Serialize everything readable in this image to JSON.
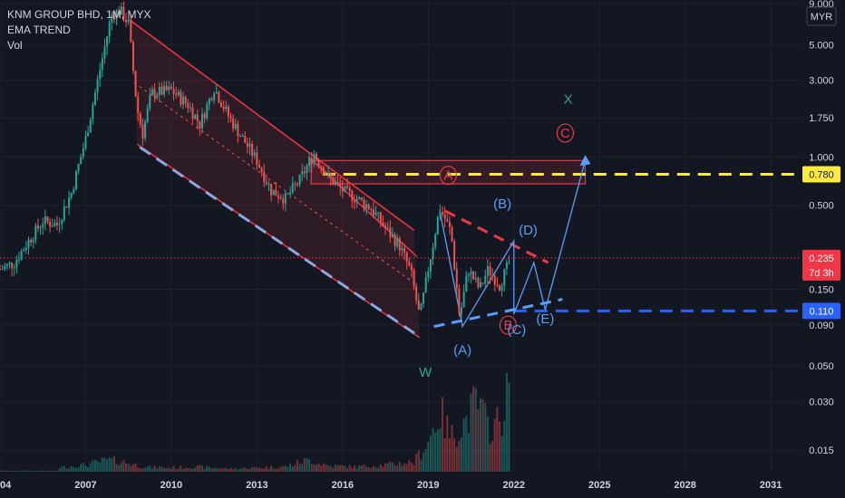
{
  "chart_data": {
    "type": "candlestick",
    "title": "KNM GROUP BHD, 1M, MYX",
    "indicators": [
      "EMA TREND",
      "Vol"
    ],
    "currency": "MYR",
    "scale": "log",
    "ylim": [
      0.013,
      9.0
    ],
    "xlim": [
      2004,
      2033.6
    ],
    "y_ticks": [
      "9.000",
      "5.000",
      "3.000",
      "1.750",
      "1.000",
      "0.500",
      "0.235",
      "0.150",
      "0.090",
      "0.050",
      "0.030",
      "0.015"
    ],
    "x_ticks": [
      "04",
      "2007",
      "2010",
      "2013",
      "2016",
      "2019",
      "2022",
      "2025",
      "2028",
      "2031"
    ],
    "price_path": [
      [
        2004.0,
        0.2
      ],
      [
        2004.5,
        0.22
      ],
      [
        2005.0,
        0.3
      ],
      [
        2005.5,
        0.4
      ],
      [
        2006.0,
        0.38
      ],
      [
        2006.5,
        0.6
      ],
      [
        2007.0,
        1.3
      ],
      [
        2007.5,
        3.5
      ],
      [
        2007.9,
        7.6
      ],
      [
        2008.2,
        8.2
      ],
      [
        2008.5,
        6.8
      ],
      [
        2008.8,
        2.0
      ],
      [
        2009.0,
        1.4
      ],
      [
        2009.3,
        2.5
      ],
      [
        2010.0,
        2.6
      ],
      [
        2010.6,
        2.1
      ],
      [
        2011.0,
        1.6
      ],
      [
        2011.5,
        2.7
      ],
      [
        2012.0,
        1.8
      ],
      [
        2012.5,
        1.3
      ],
      [
        2013.0,
        0.95
      ],
      [
        2013.5,
        0.62
      ],
      [
        2014.0,
        0.55
      ],
      [
        2014.5,
        0.72
      ],
      [
        2015.0,
        1.05
      ],
      [
        2015.5,
        0.75
      ],
      [
        2016.0,
        0.62
      ],
      [
        2016.5,
        0.55
      ],
      [
        2017.0,
        0.48
      ],
      [
        2017.5,
        0.36
      ],
      [
        2018.0,
        0.28
      ],
      [
        2018.4,
        0.19
      ],
      [
        2018.7,
        0.1
      ],
      [
        2019.0,
        0.2
      ],
      [
        2019.4,
        0.48
      ],
      [
        2019.8,
        0.34
      ],
      [
        2020.1,
        0.1
      ],
      [
        2020.4,
        0.2
      ],
      [
        2020.8,
        0.15
      ],
      [
        2021.1,
        0.2
      ],
      [
        2021.5,
        0.16
      ],
      [
        2021.9,
        0.235
      ]
    ],
    "volume": [
      [
        2006.0,
        0.04
      ],
      [
        2007.0,
        0.07
      ],
      [
        2007.8,
        0.12
      ],
      [
        2008.3,
        0.1
      ],
      [
        2009.0,
        0.05
      ],
      [
        2010.0,
        0.04
      ],
      [
        2011.0,
        0.05
      ],
      [
        2012.0,
        0.03
      ],
      [
        2013.0,
        0.04
      ],
      [
        2014.0,
        0.05
      ],
      [
        2014.8,
        0.12
      ],
      [
        2015.5,
        0.06
      ],
      [
        2016.5,
        0.05
      ],
      [
        2017.5,
        0.07
      ],
      [
        2018.5,
        0.1
      ],
      [
        2019.0,
        0.3
      ],
      [
        2019.4,
        0.6
      ],
      [
        2019.8,
        0.35
      ],
      [
        2020.3,
        0.5
      ],
      [
        2020.7,
        0.7
      ],
      [
        2021.1,
        0.45
      ],
      [
        2021.5,
        0.5
      ],
      [
        2021.9,
        0.9
      ]
    ],
    "price_tags": [
      {
        "value": "0.780",
        "bg": "#ffeb3b",
        "fg": "#131722"
      },
      {
        "value": "0.235",
        "bg": "#f23645",
        "fg": "#ffffff",
        "sub": "7d 3h"
      },
      {
        "value": "0.110",
        "bg": "#2962ff",
        "fg": "#ffffff"
      }
    ],
    "wave_labels": [
      {
        "text": "W",
        "color": "#26a69a"
      },
      {
        "text": "A",
        "color": "#f23645",
        "circled": true
      },
      {
        "text": "B",
        "color": "#f23645",
        "circled": true
      },
      {
        "text": "C",
        "color": "#f23645",
        "circled": true
      },
      {
        "text": "X",
        "color": "#26a69a"
      },
      {
        "text": "(A)",
        "color": "#5b9cf6"
      },
      {
        "text": "(B)",
        "color": "#5b9cf6"
      },
      {
        "text": "(C)",
        "color": "#5b9cf6"
      },
      {
        "text": "(D)",
        "color": "#5b9cf6"
      },
      {
        "text": "(E)",
        "color": "#5b9cf6"
      }
    ],
    "colors": {
      "background": "#131722",
      "up": "#26a69a",
      "down": "#ef5350",
      "channel": "#f23645",
      "projection": "#5b9cf6",
      "resistance": "#ffeb3b",
      "support": "#2962ff"
    }
  }
}
